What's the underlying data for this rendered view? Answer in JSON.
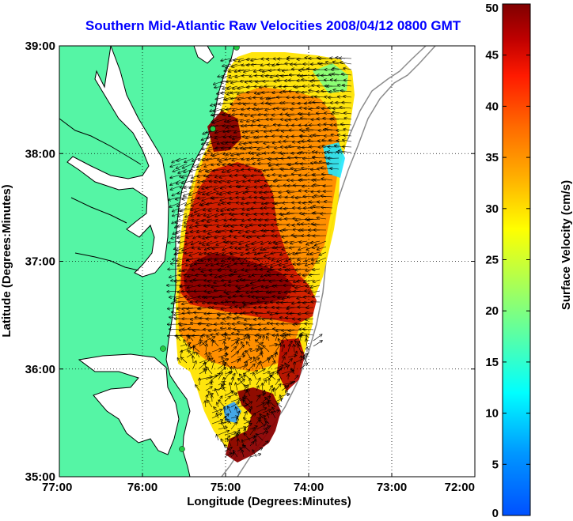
{
  "chart_data": {
    "type": "heatmap",
    "title": "Southern Mid-Atlantic Raw Velocities 2008/04/12 0800 GMT",
    "xlabel": "Longitude (Degrees:Minutes)",
    "ylabel": "Latitude (Degrees:Minutes)",
    "xlim": [
      -77,
      -72
    ],
    "ylim": [
      35,
      39
    ],
    "x_ticks": [
      -77,
      -76,
      -75,
      -74,
      -73,
      -72
    ],
    "x_tick_labels": [
      "77:00",
      "76:00",
      "75:00",
      "74:00",
      "73:00",
      "72:00"
    ],
    "y_ticks": [
      35,
      36,
      37,
      38,
      39
    ],
    "y_tick_labels": [
      "35:00",
      "36:00",
      "37:00",
      "38:00",
      "39:00"
    ],
    "grid": true,
    "colorbar": {
      "label": "Surface Velocity (cm/s)",
      "range": [
        0,
        50
      ],
      "ticks": [
        0,
        5,
        10,
        15,
        20,
        25,
        30,
        35,
        40,
        45,
        50
      ],
      "tick_labels": [
        "0",
        "5",
        "10",
        "15",
        "20",
        "25",
        "30",
        "35",
        "40",
        "45",
        "50"
      ]
    },
    "colors": {
      "land": "#55f5a5",
      "coastline": "#000000",
      "bathymetry": "#8c8c8c",
      "station": "#22cc44",
      "title": "#0000ff"
    }
  }
}
